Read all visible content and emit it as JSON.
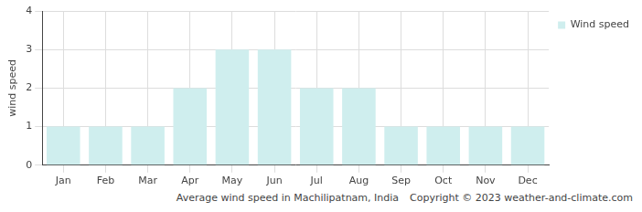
{
  "chart_data": {
    "type": "bar",
    "title": "Average wind speed in Machilipatnam, India",
    "annotations": [
      "Copyright © 2023  weather-and-climate.com"
    ],
    "y_label": "wind speed",
    "categories": [
      "Jan",
      "Feb",
      "Mar",
      "Apr",
      "May",
      "Jun",
      "Jul",
      "Aug",
      "Sep",
      "Oct",
      "Nov",
      "Dec"
    ],
    "series": [
      {
        "name": "Wind speed",
        "color": "#cfeeee",
        "values": [
          1,
          1,
          1,
          2,
          3,
          3,
          2,
          2,
          1,
          1,
          1,
          1
        ]
      }
    ],
    "ylim": [
      0,
      4
    ],
    "yticks": [
      0,
      1,
      2,
      3,
      4
    ],
    "grid": true,
    "legend": "top-right"
  }
}
